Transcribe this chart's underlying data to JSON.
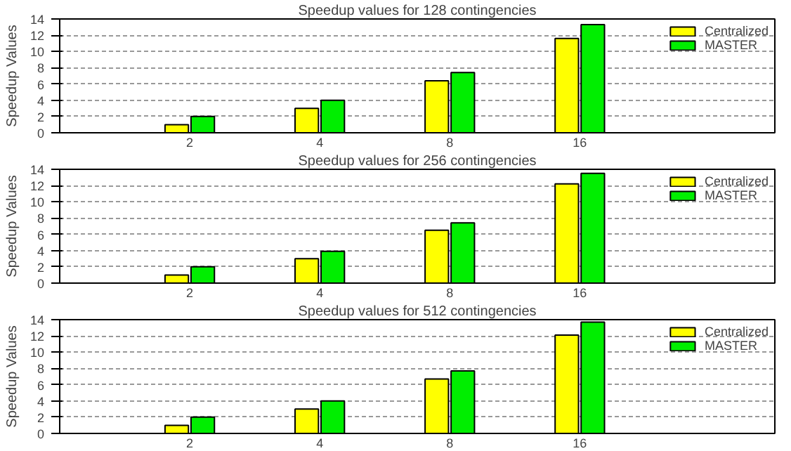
{
  "chart_data": [
    {
      "type": "bar",
      "title": "Speedup values for 128 contingencies",
      "ylabel": "Speedup Values",
      "categories": [
        "2",
        "4",
        "8",
        "16"
      ],
      "series": [
        {
          "name": "Centralized",
          "color": "#ffff00",
          "values": [
            1,
            3,
            6.4,
            11.6
          ]
        },
        {
          "name": "MASTER",
          "color": "#00ee00",
          "values": [
            2,
            4,
            7.4,
            13.3
          ]
        }
      ],
      "ylim": [
        0,
        14
      ],
      "yticks": [
        0,
        2,
        4,
        6,
        8,
        10,
        12,
        14
      ],
      "grid": "y",
      "legend": "top right"
    },
    {
      "type": "bar",
      "title": "Speedup values for 256 contingencies",
      "ylabel": "Speedup Values",
      "categories": [
        "2",
        "4",
        "8",
        "16"
      ],
      "series": [
        {
          "name": "Centralized",
          "color": "#ffff00",
          "values": [
            1,
            3,
            6.5,
            12.2
          ]
        },
        {
          "name": "MASTER",
          "color": "#00ee00",
          "values": [
            2,
            3.9,
            7.4,
            13.5
          ]
        }
      ],
      "ylim": [
        0,
        14
      ],
      "yticks": [
        0,
        2,
        4,
        6,
        8,
        10,
        12,
        14
      ],
      "grid": "y",
      "legend": "top right"
    },
    {
      "type": "bar",
      "title": "Speedup values for 512 contingencies",
      "ylabel": "Speedup Values",
      "categories": [
        "2",
        "4",
        "8",
        "16"
      ],
      "series": [
        {
          "name": "Centralized",
          "color": "#ffff00",
          "values": [
            1,
            3,
            6.7,
            12.1
          ]
        },
        {
          "name": "MASTER",
          "color": "#00ee00",
          "values": [
            2,
            4,
            7.7,
            13.7
          ]
        }
      ],
      "ylim": [
        0,
        14
      ],
      "yticks": [
        0,
        2,
        4,
        6,
        8,
        10,
        12,
        14
      ],
      "grid": "y",
      "legend": "top right"
    }
  ]
}
